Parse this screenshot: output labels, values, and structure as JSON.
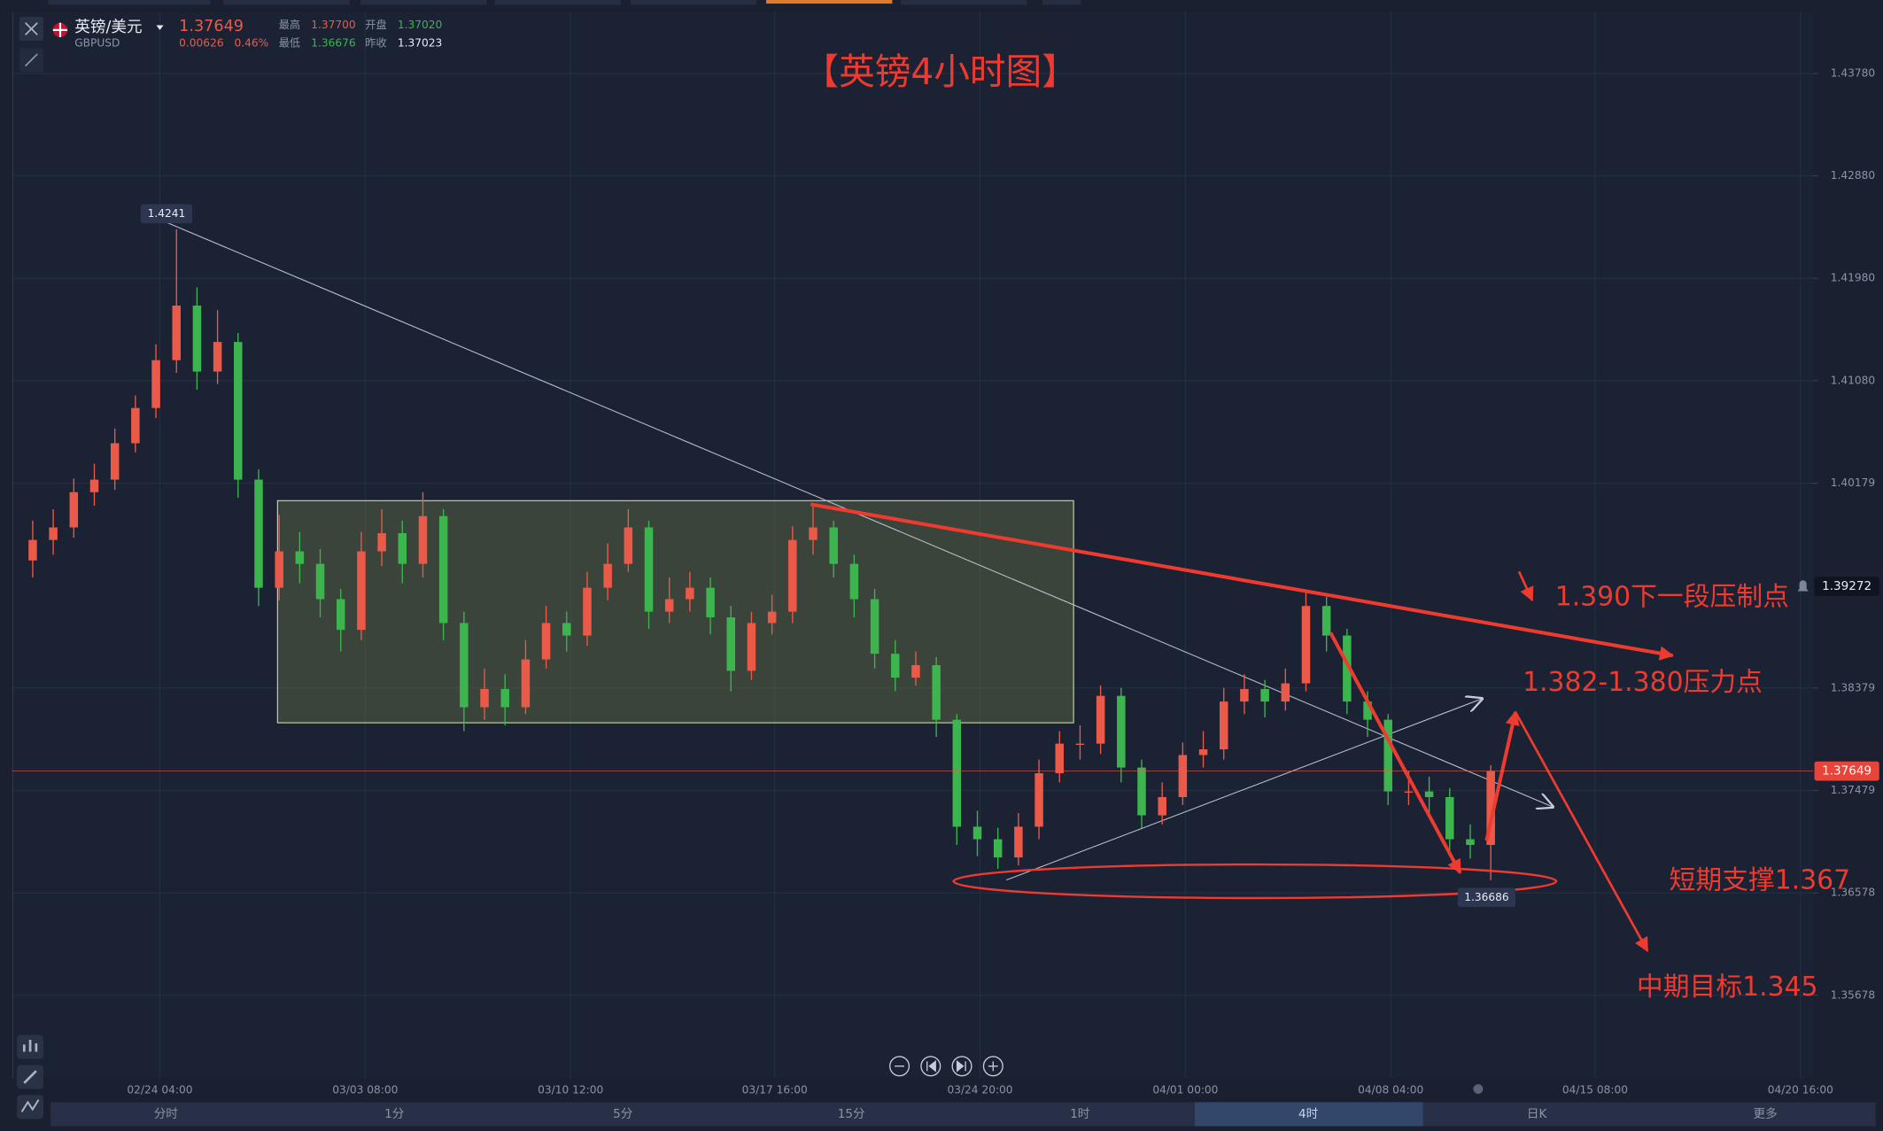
{
  "quote": {
    "name": "英镑/美元",
    "symbol": "GBPUSD",
    "last": "1.37649",
    "change": "0.00626",
    "change_pct": "0.46%",
    "high_label": "最高",
    "high": "1.37700",
    "open_label": "开盘",
    "open": "1.37020",
    "low_label": "最低",
    "low": "1.36676",
    "prev_close_label": "昨收",
    "prev_close": "1.37023"
  },
  "chart_data": {
    "type": "candlestick",
    "title": "【英镑4小时图】",
    "up_color": "#eb5a48",
    "down_color": "#3db54f",
    "xlim": [
      0,
      87.7
    ],
    "xticks": [
      {
        "value": 7.19,
        "label": "02/24 04:00"
      },
      {
        "value": 17.19,
        "label": "03/03 08:00"
      },
      {
        "value": 27.19,
        "label": "03/10 12:00"
      },
      {
        "value": 37.13,
        "label": "03/17 16:00"
      },
      {
        "value": 47.13,
        "label": "03/24 20:00"
      },
      {
        "value": 57.13,
        "label": "04/01 00:00"
      },
      {
        "value": 67.13,
        "label": "04/08 04:00"
      },
      {
        "value": 77.08,
        "label": "04/15 08:00"
      },
      {
        "value": 87.08,
        "label": "04/20 16:00"
      }
    ],
    "ylim": [
      1.3495,
      1.4432
    ],
    "yticks": [
      {
        "value": 1.4378,
        "label": "1.43780"
      },
      {
        "value": 1.4288,
        "label": "1.42880"
      },
      {
        "value": 1.4198,
        "label": "1.41980"
      },
      {
        "value": 1.4108,
        "label": "1.41080"
      },
      1.40179,
      1.38379,
      1.37479,
      1.36578,
      1.35678
    ],
    "grid": true,
    "current_price": 1.37649,
    "alert_price": 1.39272,
    "high_marker": 1.4241,
    "low_marker": 1.36686,
    "candles": {
      "open": [
        1.395,
        1.3968,
        1.3979,
        1.401,
        1.4021,
        1.4053,
        1.4084,
        1.4126,
        1.4174,
        1.4116,
        1.4142,
        1.4021,
        1.3926,
        1.3958,
        1.3947,
        1.3916,
        1.3889,
        1.3958,
        1.3974,
        1.3947,
        1.3989,
        1.3895,
        1.3821,
        1.3837,
        1.3821,
        1.3863,
        1.3895,
        1.3884,
        1.3926,
        1.3947,
        1.3979,
        1.3905,
        1.3916,
        1.3926,
        1.39,
        1.3853,
        1.3895,
        1.3905,
        1.3968,
        1.3979,
        1.3947,
        1.3916,
        1.3868,
        1.3847,
        1.3858,
        1.381,
        1.3716,
        1.3705,
        1.3689,
        1.3716,
        1.3763,
        1.3789,
        1.3789,
        1.3831,
        1.3768,
        1.3726,
        1.3742,
        1.3779,
        1.3784,
        1.3826,
        1.3837,
        1.3826,
        1.3842,
        1.391,
        1.3884,
        1.3826,
        1.381,
        1.3747,
        1.3747,
        1.3742,
        1.3705,
        1.37
      ],
      "high": [
        1.3985,
        1.3995,
        1.4022,
        1.4035,
        1.4066,
        1.4095,
        1.414,
        1.4241,
        1.419,
        1.417,
        1.415,
        1.403,
        1.399,
        1.3975,
        1.396,
        1.3925,
        1.3975,
        1.3995,
        1.3985,
        1.401,
        1.3995,
        1.3905,
        1.3855,
        1.385,
        1.388,
        1.391,
        1.3905,
        1.394,
        1.3965,
        1.3995,
        1.3985,
        1.3935,
        1.394,
        1.3935,
        1.391,
        1.3905,
        1.392,
        1.398,
        1.4,
        1.3985,
        1.3955,
        1.3925,
        1.388,
        1.387,
        1.3865,
        1.3815,
        1.373,
        1.3715,
        1.3728,
        1.3775,
        1.38,
        1.3805,
        1.384,
        1.3838,
        1.3775,
        1.3755,
        1.379,
        1.38,
        1.3838,
        1.385,
        1.3845,
        1.3855,
        1.3922,
        1.3918,
        1.389,
        1.3835,
        1.3815,
        1.3765,
        1.376,
        1.375,
        1.3718,
        1.377
      ],
      "low": [
        1.3935,
        1.3955,
        1.397,
        1.3998,
        1.4012,
        1.4045,
        1.4075,
        1.4115,
        1.41,
        1.4105,
        1.4005,
        1.391,
        1.3915,
        1.393,
        1.39,
        1.387,
        1.388,
        1.3945,
        1.393,
        1.3935,
        1.388,
        1.38,
        1.381,
        1.3805,
        1.3815,
        1.3855,
        1.387,
        1.3875,
        1.3915,
        1.394,
        1.389,
        1.3895,
        1.3905,
        1.3885,
        1.3835,
        1.3845,
        1.3885,
        1.3895,
        1.3955,
        1.3935,
        1.39,
        1.3855,
        1.3835,
        1.384,
        1.3795,
        1.37,
        1.369,
        1.3679,
        1.3682,
        1.3705,
        1.3755,
        1.3775,
        1.378,
        1.3755,
        1.3715,
        1.3718,
        1.3735,
        1.3768,
        1.3775,
        1.3815,
        1.3812,
        1.3818,
        1.3835,
        1.387,
        1.3815,
        1.3795,
        1.3735,
        1.3735,
        1.3728,
        1.3692,
        1.3688,
        1.3669
      ],
      "close": [
        1.3968,
        1.3979,
        1.401,
        1.4021,
        1.4053,
        1.4084,
        1.4126,
        1.4174,
        1.4116,
        1.4142,
        1.4021,
        1.3926,
        1.3958,
        1.3947,
        1.3916,
        1.3889,
        1.3958,
        1.3974,
        1.3947,
        1.3989,
        1.3895,
        1.3821,
        1.3837,
        1.3821,
        1.3863,
        1.3895,
        1.3884,
        1.3926,
        1.3947,
        1.3979,
        1.3905,
        1.3916,
        1.3926,
        1.39,
        1.3853,
        1.3895,
        1.3905,
        1.3968,
        1.3979,
        1.3947,
        1.3916,
        1.3868,
        1.3847,
        1.3858,
        1.381,
        1.3716,
        1.3705,
        1.3689,
        1.3716,
        1.3763,
        1.3789,
        1.3789,
        1.3831,
        1.3768,
        1.3726,
        1.3742,
        1.3779,
        1.3784,
        1.3826,
        1.3837,
        1.3826,
        1.3842,
        1.391,
        1.3884,
        1.3826,
        1.381,
        1.3747,
        1.3747,
        1.3742,
        1.3705,
        1.37,
        1.3765
      ]
    },
    "annotations": [
      "1.390下一段压制点",
      "1.382-1.380压力点",
      "短期支撑1.367",
      "中期目标1.345"
    ]
  },
  "toolbar": {
    "timeframes": [
      "分时",
      "1分",
      "5分",
      "15分",
      "1时",
      "4时",
      "日K",
      "更多"
    ]
  }
}
